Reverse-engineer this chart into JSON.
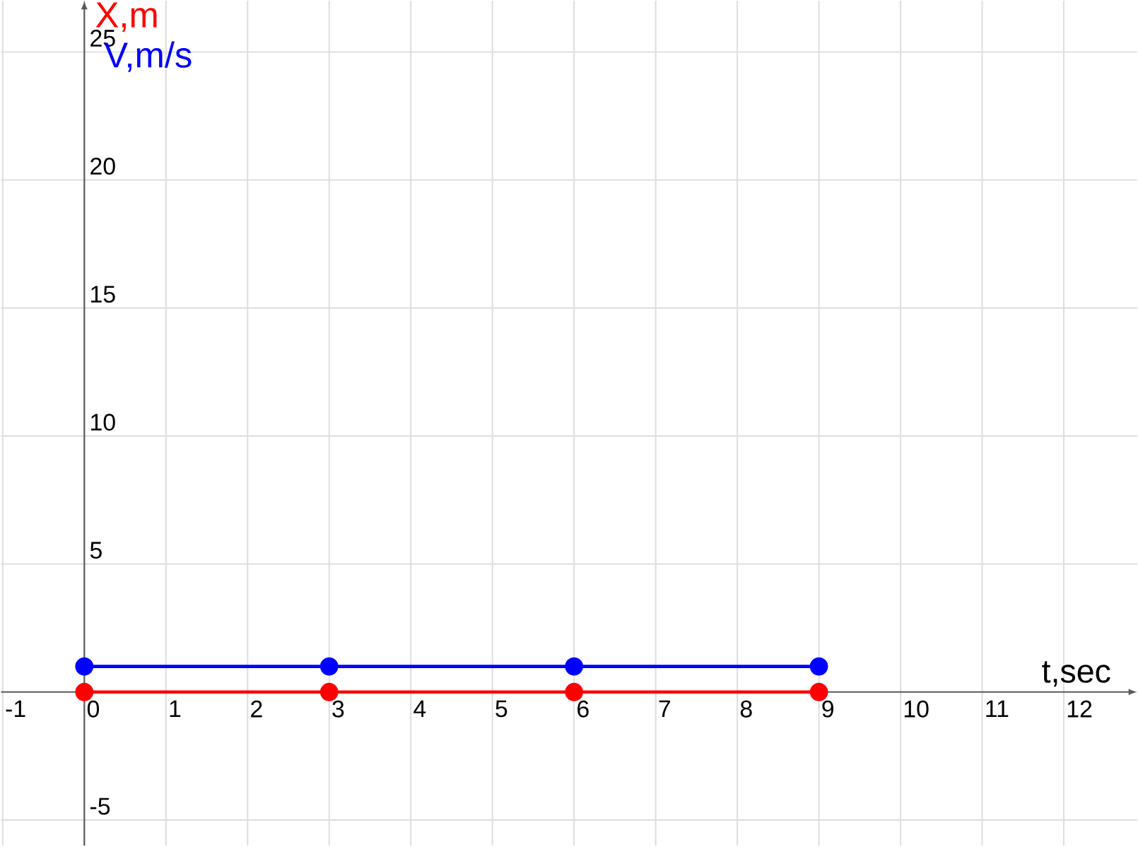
{
  "chart_data": {
    "type": "line",
    "xlabel": "t,sec",
    "x": [
      0,
      3,
      6,
      9
    ],
    "series": [
      {
        "name": "X,m",
        "color": "#ff0000",
        "values": [
          0,
          0,
          0,
          0
        ]
      },
      {
        "name": "V,m/s",
        "color": "#0000ff",
        "values": [
          1,
          1,
          1,
          1
        ]
      }
    ],
    "xlim": [
      -1.02,
      12.9
    ],
    "ylim": [
      -6,
      27
    ],
    "xticks": [
      -1,
      0,
      1,
      2,
      3,
      4,
      5,
      6,
      7,
      8,
      9,
      10,
      11,
      12
    ],
    "yticks": [
      -5,
      5,
      10,
      15,
      20,
      25
    ],
    "grid": true,
    "marker": "circle",
    "line_style": "solid"
  }
}
